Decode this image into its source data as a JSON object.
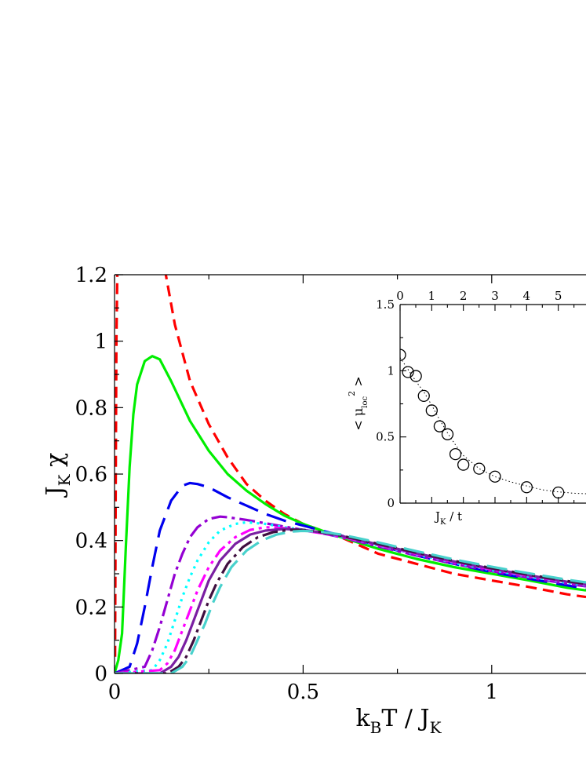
{
  "chart_data": [
    {
      "type": "line",
      "title": "",
      "xlabel": {
        "base": "k",
        "sub": "B",
        "rest": "T / J",
        "sub2": "K"
      },
      "ylabel": {
        "base": "J",
        "sub": "K",
        "rest": " χ"
      },
      "xlim": [
        0,
        1.25
      ],
      "ylim": [
        0,
        1.2
      ],
      "x_ticks": [
        0,
        0.5,
        1
      ],
      "x_tick_labels": [
        "0",
        "0.5",
        "1"
      ],
      "y_ticks": [
        0,
        0.2,
        0.4,
        0.6,
        0.8,
        1.0,
        1.2
      ],
      "y_tick_labels": [
        "0",
        "0.2",
        "0.4",
        "0.6",
        "0.8",
        "1",
        "1.2"
      ],
      "grid": false,
      "legend": "none",
      "series": [
        {
          "color": "#ff0000",
          "dash": "14,8",
          "x": [
            0.0015,
            0.003,
            0.005,
            0.008,
            0.012,
            0.02,
            0.04,
            0.08,
            0.12,
            0.16,
            0.2,
            0.25,
            0.3,
            0.35,
            0.4,
            0.45,
            0.5,
            0.55,
            0.6,
            0.7,
            0.8,
            0.9,
            1.0,
            1.1,
            1.2,
            1.25
          ],
          "y": [
            0.05,
            0.5,
            1.0,
            1.25,
            1.3,
            1.3,
            1.3,
            1.3,
            1.3,
            1.05,
            0.88,
            0.75,
            0.65,
            0.57,
            0.52,
            0.48,
            0.45,
            0.43,
            0.41,
            0.36,
            0.33,
            0.3,
            0.28,
            0.26,
            0.238,
            0.23
          ]
        },
        {
          "color": "#00ee00",
          "dash": "",
          "x": [
            0,
            0.01,
            0.02,
            0.03,
            0.04,
            0.05,
            0.06,
            0.08,
            0.1,
            0.12,
            0.15,
            0.2,
            0.25,
            0.3,
            0.35,
            0.4,
            0.45,
            0.5,
            0.55,
            0.6,
            0.7,
            0.8,
            0.9,
            1.0,
            1.1,
            1.2,
            1.25
          ],
          "y": [
            0,
            0.04,
            0.12,
            0.38,
            0.62,
            0.78,
            0.87,
            0.94,
            0.955,
            0.945,
            0.88,
            0.76,
            0.67,
            0.6,
            0.55,
            0.51,
            0.475,
            0.45,
            0.43,
            0.41,
            0.375,
            0.345,
            0.32,
            0.3,
            0.28,
            0.258,
            0.25
          ]
        },
        {
          "color": "#0000ee",
          "dash": "26,12",
          "x": [
            0,
            0.04,
            0.06,
            0.08,
            0.1,
            0.12,
            0.15,
            0.18,
            0.2,
            0.22,
            0.25,
            0.3,
            0.35,
            0.4,
            0.45,
            0.5,
            0.55,
            0.6,
            0.7,
            0.8,
            0.9,
            1.0,
            1.1,
            1.2,
            1.25
          ],
          "y": [
            0,
            0.02,
            0.09,
            0.2,
            0.32,
            0.43,
            0.52,
            0.565,
            0.573,
            0.57,
            0.56,
            0.53,
            0.505,
            0.48,
            0.46,
            0.445,
            0.43,
            0.415,
            0.385,
            0.355,
            0.33,
            0.305,
            0.285,
            0.265,
            0.255
          ]
        },
        {
          "color": "#9400d3",
          "dash": "20,6,4,6",
          "x": [
            0,
            0.08,
            0.1,
            0.12,
            0.14,
            0.16,
            0.18,
            0.2,
            0.22,
            0.25,
            0.28,
            0.3,
            0.35,
            0.4,
            0.45,
            0.5,
            0.55,
            0.6,
            0.7,
            0.8,
            0.9,
            1.0,
            1.1,
            1.2,
            1.25
          ],
          "y": [
            0,
            0.02,
            0.07,
            0.14,
            0.22,
            0.3,
            0.36,
            0.41,
            0.44,
            0.465,
            0.472,
            0.47,
            0.462,
            0.452,
            0.442,
            0.432,
            0.422,
            0.41,
            0.382,
            0.355,
            0.33,
            0.308,
            0.288,
            0.27,
            0.262
          ]
        },
        {
          "color": "#00ffff",
          "dash": "3,6",
          "x": [
            0,
            0.1,
            0.12,
            0.14,
            0.16,
            0.18,
            0.2,
            0.22,
            0.25,
            0.28,
            0.32,
            0.35,
            0.4,
            0.45,
            0.5,
            0.55,
            0.6,
            0.7,
            0.8,
            0.9,
            1.0,
            1.1,
            1.2,
            1.25
          ],
          "y": [
            0,
            0.01,
            0.04,
            0.09,
            0.16,
            0.23,
            0.29,
            0.34,
            0.395,
            0.43,
            0.45,
            0.455,
            0.45,
            0.44,
            0.432,
            0.423,
            0.412,
            0.385,
            0.358,
            0.333,
            0.311,
            0.291,
            0.273,
            0.265
          ]
        },
        {
          "color": "#ff00ff",
          "dash": "18,6,4,6,4,6",
          "x": [
            0,
            0.12,
            0.14,
            0.16,
            0.18,
            0.2,
            0.22,
            0.25,
            0.28,
            0.32,
            0.36,
            0.4,
            0.45,
            0.5,
            0.55,
            0.6,
            0.7,
            0.8,
            0.9,
            1.0,
            1.1,
            1.2,
            1.25
          ],
          "y": [
            0,
            0.01,
            0.03,
            0.07,
            0.13,
            0.19,
            0.25,
            0.32,
            0.37,
            0.41,
            0.432,
            0.44,
            0.437,
            0.43,
            0.422,
            0.412,
            0.386,
            0.36,
            0.335,
            0.313,
            0.293,
            0.275,
            0.267
          ]
        },
        {
          "color": "#7a1fa2",
          "dash": "",
          "x": [
            0,
            0.12,
            0.15,
            0.17,
            0.19,
            0.21,
            0.23,
            0.25,
            0.28,
            0.32,
            0.36,
            0.4,
            0.45,
            0.5,
            0.55,
            0.6,
            0.7,
            0.8,
            0.9,
            1.0,
            1.1,
            1.2,
            1.25
          ],
          "y": [
            0,
            0.0,
            0.02,
            0.05,
            0.1,
            0.16,
            0.22,
            0.28,
            0.34,
            0.39,
            0.418,
            0.43,
            0.435,
            0.432,
            0.424,
            0.414,
            0.388,
            0.362,
            0.337,
            0.315,
            0.295,
            0.276,
            0.268
          ]
        },
        {
          "color": "#3f0f3f",
          "dash": "20,6,4,6",
          "x": [
            0,
            0.14,
            0.17,
            0.19,
            0.21,
            0.23,
            0.25,
            0.27,
            0.3,
            0.34,
            0.38,
            0.42,
            0.46,
            0.5,
            0.55,
            0.6,
            0.7,
            0.8,
            0.9,
            1.0,
            1.1,
            1.2,
            1.25
          ],
          "y": [
            0,
            0.0,
            0.02,
            0.05,
            0.1,
            0.16,
            0.22,
            0.27,
            0.33,
            0.38,
            0.41,
            0.425,
            0.432,
            0.432,
            0.425,
            0.415,
            0.39,
            0.364,
            0.339,
            0.317,
            0.297,
            0.278,
            0.27
          ]
        },
        {
          "color": "#48d1cc",
          "dash": "26,10",
          "x": [
            0,
            0.15,
            0.18,
            0.2,
            0.22,
            0.24,
            0.26,
            0.28,
            0.31,
            0.35,
            0.39,
            0.43,
            0.47,
            0.5,
            0.55,
            0.6,
            0.7,
            0.8,
            0.9,
            1.0,
            1.1,
            1.2,
            1.25
          ],
          "y": [
            0,
            0.0,
            0.02,
            0.05,
            0.1,
            0.15,
            0.21,
            0.26,
            0.32,
            0.37,
            0.4,
            0.418,
            0.427,
            0.429,
            0.426,
            0.418,
            0.394,
            0.368,
            0.343,
            0.321,
            0.301,
            0.282,
            0.274
          ]
        }
      ]
    },
    {
      "type": "scatter",
      "title": "",
      "xlabel": {
        "base": "J",
        "sub": "K",
        "rest": " / t"
      },
      "ylabel": {
        "pre": "< μ",
        "sub": "loc",
        "sup": "2",
        "post": " >"
      },
      "xlim": [
        0,
        6
      ],
      "ylim": [
        0,
        1.5
      ],
      "x_ticks": [
        0,
        1,
        2,
        3,
        4,
        5
      ],
      "x_tick_labels": [
        "0",
        "1",
        "2",
        "3",
        "4",
        "5"
      ],
      "x_tick_position": "top",
      "y_ticks": [
        0,
        0.5,
        1.0,
        1.5
      ],
      "y_tick_labels": [
        "0",
        "0.5",
        "1",
        "1.5"
      ],
      "points": {
        "x": [
          0,
          0.25,
          0.5,
          0.75,
          1.0,
          1.25,
          1.5,
          1.75,
          2.0,
          2.5,
          3.0,
          4.0,
          5.0
        ],
        "y": [
          1.12,
          0.99,
          0.96,
          0.81,
          0.7,
          0.58,
          0.52,
          0.37,
          0.29,
          0.26,
          0.2,
          0.12,
          0.08
        ]
      },
      "fit_line": {
        "style": "dotted",
        "x": [
          0,
          0.25,
          0.5,
          0.75,
          1,
          1.25,
          1.5,
          1.75,
          2,
          2.5,
          3,
          3.5,
          4,
          4.5,
          5,
          5.5,
          6
        ],
        "y": [
          1.1,
          1.01,
          0.92,
          0.84,
          0.74,
          0.63,
          0.53,
          0.44,
          0.36,
          0.26,
          0.2,
          0.16,
          0.13,
          0.1,
          0.085,
          0.075,
          0.07
        ]
      }
    }
  ]
}
